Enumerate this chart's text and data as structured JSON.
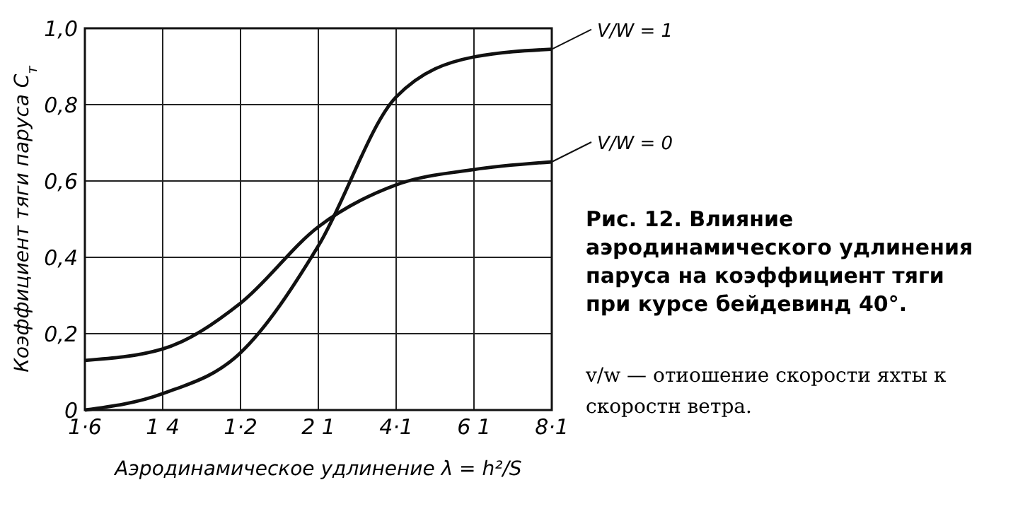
{
  "chart_data": {
    "type": "line",
    "title": "Рис. 12. Влияние аэродинамического удлинения паруса на коэффициент тяги при курсе бейдевинд 40°.",
    "xlabel": "Аэродинамическое удлинение λ = h²/S",
    "ylabel": "Коэффициент тяги паруса C$_{т}$",
    "annotations": [
      "v/w — отиошение скорости яхты к скоростн ветра."
    ],
    "categories": [
      "1·6",
      "1 4",
      "1·2",
      "2 1",
      "4·1",
      "6 1",
      "8·1"
    ],
    "ylim": [
      0,
      1
    ],
    "yticks": [
      0,
      {
        "value": 0.2,
        "label": "0,2"
      },
      {
        "value": 0.4,
        "label": "0,4"
      },
      {
        "value": 0.6,
        "label": "0,6"
      },
      {
        "value": 0.8,
        "label": "0,8"
      },
      {
        "value": 1,
        "label": "1,0"
      }
    ],
    "grid": true,
    "legend": "right",
    "marker": "none",
    "line_style": "solid",
    "series": [
      {
        "name": "V/W = 1",
        "color": "#111111",
        "values": [
          0,
          0.043,
          0.15,
          0.43,
          0.82,
          0.925,
          0.945
        ]
      },
      {
        "name": "V/W = 0",
        "color": "#111111",
        "values": [
          0.13,
          0.16,
          0.28,
          0.48,
          0.59,
          0.63,
          0.65
        ]
      }
    ]
  }
}
